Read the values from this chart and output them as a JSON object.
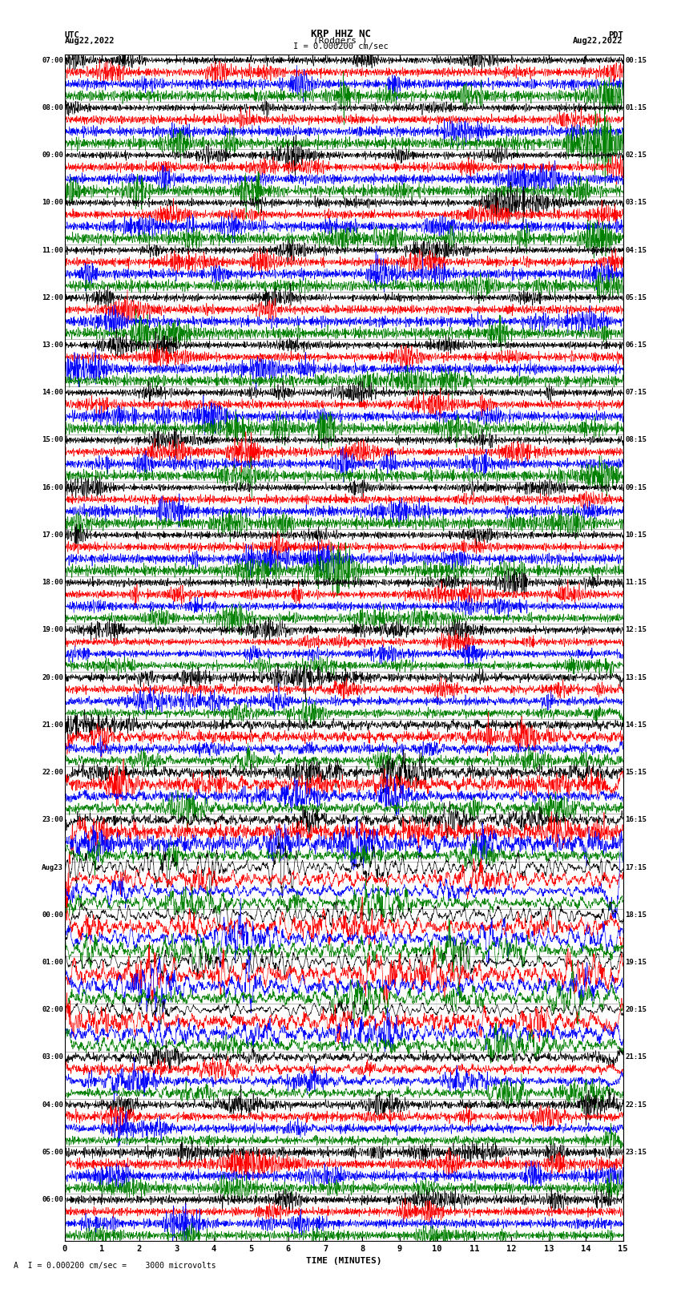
{
  "title_line1": "KRP HHZ NC",
  "title_line2": "(Rodgers )",
  "scale_label": "I = 0.000200 cm/sec",
  "left_label": "UTC",
  "left_date": "Aug22,2022",
  "right_label": "PDT",
  "right_date": "Aug22,2022",
  "left_times": [
    "07:00",
    "08:00",
    "09:00",
    "10:00",
    "11:00",
    "12:00",
    "13:00",
    "14:00",
    "15:00",
    "16:00",
    "17:00",
    "18:00",
    "19:00",
    "20:00",
    "21:00",
    "22:00",
    "23:00",
    "Aug23",
    "00:00",
    "01:00",
    "02:00",
    "03:00",
    "04:00",
    "05:00",
    "06:00"
  ],
  "right_times": [
    "00:15",
    "01:15",
    "02:15",
    "03:15",
    "04:15",
    "05:15",
    "06:15",
    "07:15",
    "08:15",
    "09:15",
    "10:15",
    "11:15",
    "12:15",
    "13:15",
    "14:15",
    "15:15",
    "16:15",
    "17:15",
    "18:15",
    "19:15",
    "20:15",
    "21:15",
    "22:15",
    "23:15"
  ],
  "xlabel": "TIME (MINUTES)",
  "bottom_label": "A  I = 0.000200 cm/sec =    3000 microvolts",
  "colors": [
    "black",
    "red",
    "blue",
    "green"
  ],
  "num_rows": 25,
  "traces_per_row": 4,
  "x_min": 0,
  "x_max": 15,
  "x_ticks": [
    0,
    1,
    2,
    3,
    4,
    5,
    6,
    7,
    8,
    9,
    10,
    11,
    12,
    13,
    14,
    15
  ],
  "fig_width": 8.5,
  "fig_height": 16.13
}
